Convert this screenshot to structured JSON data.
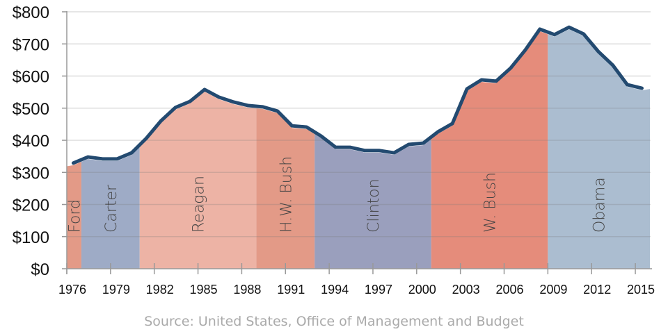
{
  "chart_data": {
    "type": "area",
    "title": "",
    "xlabel": "",
    "ylabel": "",
    "ylim": [
      0,
      800
    ],
    "y_ticks": [
      "$0",
      "$100",
      "$200",
      "$300",
      "$400",
      "$500",
      "$600",
      "$700",
      "$800"
    ],
    "y_tick_values": [
      0,
      100,
      200,
      300,
      400,
      500,
      600,
      700,
      800
    ],
    "x_ticks": [
      "1976",
      "1979",
      "1982",
      "1985",
      "1988",
      "1991",
      "1994",
      "1997",
      "2000",
      "2003",
      "2006",
      "2009",
      "2012",
      "2015"
    ],
    "x_tick_values": [
      1976,
      1979,
      1982,
      1985,
      1988,
      1991,
      1994,
      1997,
      2000,
      2003,
      2006,
      2009,
      2012,
      2015
    ],
    "xlim": [
      1976,
      2016
    ],
    "grid": true,
    "line_color": "#234a70",
    "series": [
      {
        "x": [
          1976,
          1977,
          1978,
          1979,
          1980,
          1981,
          1982,
          1983,
          1984,
          1985,
          1986,
          1987,
          1988,
          1989,
          1990,
          1991,
          1992,
          1993,
          1994,
          1995,
          1996,
          1997,
          1998,
          1999,
          2000,
          2001,
          2002,
          2003,
          2004,
          2005,
          2006,
          2007,
          2008,
          2009,
          2010,
          2011,
          2012,
          2013,
          2014,
          2015
        ],
        "values": [
          329,
          348,
          342,
          342,
          361,
          406,
          460,
          502,
          521,
          558,
          534,
          519,
          508,
          504,
          491,
          445,
          441,
          413,
          378,
          378,
          368,
          368,
          361,
          387,
          391,
          426,
          452,
          560,
          588,
          584,
          625,
          681,
          746,
          729,
          752,
          731,
          677,
          634,
          573,
          562
        ]
      }
    ],
    "bands": [
      {
        "label": "Ford",
        "start": 1976,
        "end": 1977,
        "color": "#e39a87"
      },
      {
        "label": "Carter",
        "start": 1977,
        "end": 1981,
        "color": "#9eabc6"
      },
      {
        "label": "Reagan",
        "start": 1981,
        "end": 1989,
        "color": "#edb3a5"
      },
      {
        "label": "H.W. Bush",
        "start": 1989,
        "end": 1993,
        "color": "#e39a87"
      },
      {
        "label": "Clinton",
        "start": 1993,
        "end": 2001,
        "color": "#9a9fbd"
      },
      {
        "label": "W. Bush",
        "start": 2001,
        "end": 2009,
        "color": "#e58c7b"
      },
      {
        "label": "Obama",
        "start": 2009,
        "end": 2016,
        "color": "#abbdd0"
      }
    ],
    "source": "Source: United States, Office of Management and Budget"
  }
}
